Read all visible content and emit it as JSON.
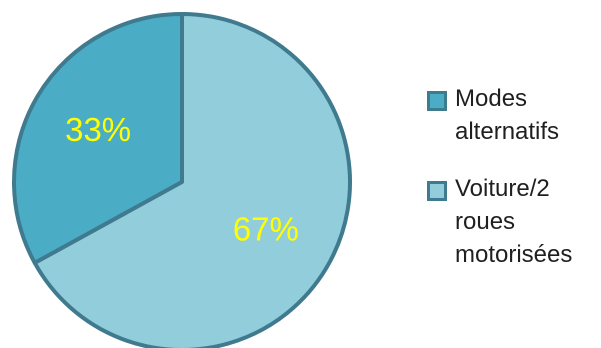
{
  "chart_data": {
    "type": "pie",
    "categories": [
      "Modes alternatifs",
      "Voiture/2 roues motorisées"
    ],
    "values": [
      33,
      67
    ],
    "data_labels": [
      "33%",
      "67%"
    ],
    "colors": [
      "#4bacc6",
      "#92cddc"
    ],
    "edge_color": "#3f7a8e",
    "label_color": "#ffff00",
    "legend_placement": "right",
    "title": ""
  }
}
